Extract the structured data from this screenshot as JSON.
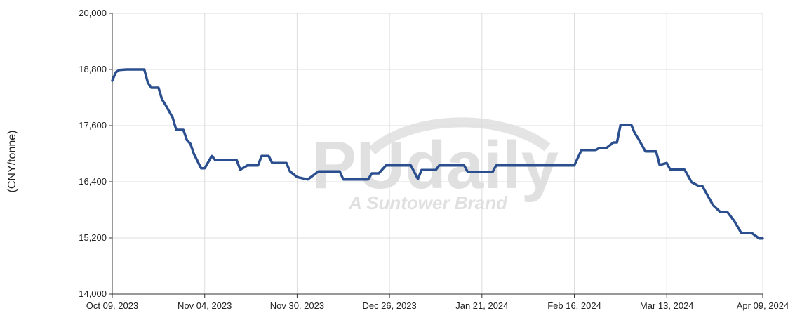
{
  "chart_data": {
    "type": "line",
    "y_label": "(CNY/tonne)",
    "watermark": {
      "text": "PUdaily",
      "subtext": "A Suntower Brand"
    },
    "xlim": [
      "2023-10-09",
      "2024-04-09"
    ],
    "xticks": [
      {
        "value": "2023-10-09",
        "label": "Oct 09, 2023"
      },
      {
        "value": "2023-11-04",
        "label": "Nov 04, 2023"
      },
      {
        "value": "2023-11-30",
        "label": "Nov 30, 2023"
      },
      {
        "value": "2023-12-26",
        "label": "Dec 26, 2023"
      },
      {
        "value": "2024-01-21",
        "label": "Jan 21, 2024"
      },
      {
        "value": "2024-02-16",
        "label": "Feb 16, 2024"
      },
      {
        "value": "2024-03-13",
        "label": "Mar 13, 2024"
      },
      {
        "value": "2024-04-09",
        "label": "Apr 09, 2024"
      }
    ],
    "ylim": [
      14000,
      20000
    ],
    "yticks": [
      {
        "value": 14000,
        "label": "14,000"
      },
      {
        "value": 15200,
        "label": "15,200"
      },
      {
        "value": 16400,
        "label": "16,400"
      },
      {
        "value": 17600,
        "label": "17,600"
      },
      {
        "value": 18800,
        "label": "18,800"
      },
      {
        "value": 20000,
        "label": "20,000"
      }
    ],
    "grid": true,
    "x": [
      "2023-10-09",
      "2023-10-10",
      "2023-10-11",
      "2023-10-13",
      "2023-10-18",
      "2023-10-19",
      "2023-10-20",
      "2023-10-22",
      "2023-10-23",
      "2023-10-24",
      "2023-10-26",
      "2023-10-27",
      "2023-10-29",
      "2023-10-30",
      "2023-10-31",
      "2023-11-01",
      "2023-11-03",
      "2023-11-04",
      "2023-11-06",
      "2023-11-07",
      "2023-11-13",
      "2023-11-14",
      "2023-11-16",
      "2023-11-19",
      "2023-11-20",
      "2023-11-22",
      "2023-11-23",
      "2023-11-27",
      "2023-11-28",
      "2023-11-30",
      "2023-12-03",
      "2023-12-06",
      "2023-12-12",
      "2023-12-13",
      "2023-12-20",
      "2023-12-21",
      "2023-12-23",
      "2023-12-25",
      "2024-01-01",
      "2024-01-03",
      "2024-01-04",
      "2024-01-08",
      "2024-01-09",
      "2024-01-16",
      "2024-01-17",
      "2024-01-24",
      "2024-01-25",
      "2024-02-16",
      "2024-02-18",
      "2024-02-22",
      "2024-02-23",
      "2024-02-25",
      "2024-02-27",
      "2024-02-28",
      "2024-02-29",
      "2024-03-03",
      "2024-03-04",
      "2024-03-05",
      "2024-03-07",
      "2024-03-10",
      "2024-03-11",
      "2024-03-13",
      "2024-03-14",
      "2024-03-18",
      "2024-03-20",
      "2024-03-22",
      "2024-03-23",
      "2024-03-25",
      "2024-03-26",
      "2024-03-28",
      "2024-03-30",
      "2024-04-01",
      "2024-04-03",
      "2024-04-06",
      "2024-04-08",
      "2024-04-09"
    ],
    "series": [
      {
        "color": "#2b4f8e",
        "values": [
          18560,
          18740,
          18790,
          18800,
          18800,
          18520,
          18410,
          18410,
          18160,
          18040,
          17770,
          17510,
          17510,
          17290,
          17210,
          16990,
          16690,
          16690,
          16950,
          16860,
          16860,
          16660,
          16750,
          16750,
          16950,
          16950,
          16800,
          16800,
          16620,
          16500,
          16450,
          16620,
          16620,
          16450,
          16450,
          16580,
          16580,
          16750,
          16750,
          16460,
          16650,
          16650,
          16750,
          16750,
          16610,
          16610,
          16750,
          16750,
          17080,
          17080,
          17120,
          17120,
          17240,
          17240,
          17620,
          17620,
          17440,
          17320,
          17050,
          17050,
          16760,
          16800,
          16660,
          16660,
          16390,
          16310,
          16310,
          16040,
          15900,
          15760,
          15760,
          15560,
          15300,
          15300,
          15190,
          15190
        ]
      }
    ]
  }
}
